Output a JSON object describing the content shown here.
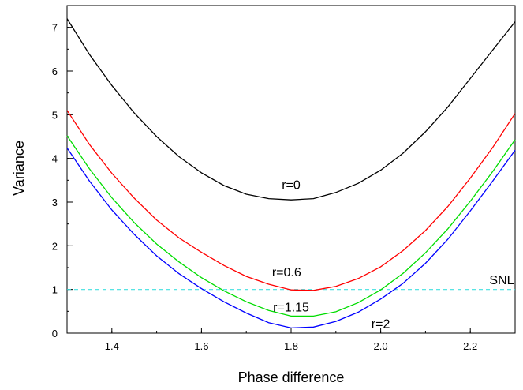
{
  "chart_data": {
    "type": "line",
    "title": "",
    "xlabel": "Phase difference",
    "ylabel": "Variance",
    "xlim": [
      1.3,
      2.3
    ],
    "ylim": [
      0,
      7.5
    ],
    "xticks": [
      1.4,
      1.6,
      1.8,
      2.0,
      2.2
    ],
    "xtick_labels": [
      "1.4",
      "1.6",
      "1.8",
      "2.0",
      "2.2"
    ],
    "yticks": [
      0,
      1,
      2,
      3,
      4,
      5,
      6,
      7
    ],
    "ytick_labels": [
      "0",
      "1",
      "2",
      "3",
      "4",
      "5",
      "6",
      "7"
    ],
    "grid": false,
    "x": [
      1.3,
      1.35,
      1.4,
      1.45,
      1.5,
      1.55,
      1.6,
      1.65,
      1.7,
      1.75,
      1.8,
      1.85,
      1.9,
      1.95,
      2.0,
      2.05,
      2.1,
      2.15,
      2.2,
      2.25,
      2.3
    ],
    "series": [
      {
        "label": "r=0",
        "color": "#000000",
        "values": [
          7.2,
          6.38,
          5.67,
          5.04,
          4.5,
          4.04,
          3.67,
          3.38,
          3.18,
          3.08,
          3.05,
          3.08,
          3.22,
          3.43,
          3.73,
          4.12,
          4.61,
          5.18,
          5.83,
          6.48,
          7.13
        ]
      },
      {
        "label": "r=0.6",
        "color": "#ff0000",
        "values": [
          5.1,
          4.32,
          3.66,
          3.09,
          2.59,
          2.18,
          1.85,
          1.55,
          1.3,
          1.12,
          0.99,
          0.98,
          1.07,
          1.25,
          1.52,
          1.89,
          2.35,
          2.9,
          3.55,
          4.25,
          5.03
        ]
      },
      {
        "label": "r=1.15",
        "color": "#00dd00",
        "values": [
          4.52,
          3.76,
          3.1,
          2.53,
          2.04,
          1.63,
          1.27,
          0.97,
          0.72,
          0.52,
          0.39,
          0.39,
          0.49,
          0.7,
          0.99,
          1.37,
          1.84,
          2.39,
          3.02,
          3.7,
          4.43
        ]
      },
      {
        "label": "r=2",
        "color": "#0000ff",
        "values": [
          4.24,
          3.48,
          2.82,
          2.26,
          1.77,
          1.36,
          1.02,
          0.72,
          0.46,
          0.24,
          0.12,
          0.14,
          0.27,
          0.48,
          0.78,
          1.14,
          1.6,
          2.15,
          2.8,
          3.48,
          4.19
        ]
      }
    ],
    "reference_line": {
      "label": "SNL",
      "y": 1,
      "color": "#40e0e0",
      "style": "dashed"
    },
    "annotations": [
      {
        "text": "r=0",
        "x": 1.8,
        "y": 3.3
      },
      {
        "text": "r=0.6",
        "x": 1.79,
        "y": 1.3
      },
      {
        "text": "r=1.15",
        "x": 1.8,
        "y": 0.5
      },
      {
        "text": "r=2",
        "x": 2.0,
        "y": 0.12
      },
      {
        "text": "SNL",
        "x": 2.27,
        "y": 1.12
      }
    ]
  }
}
